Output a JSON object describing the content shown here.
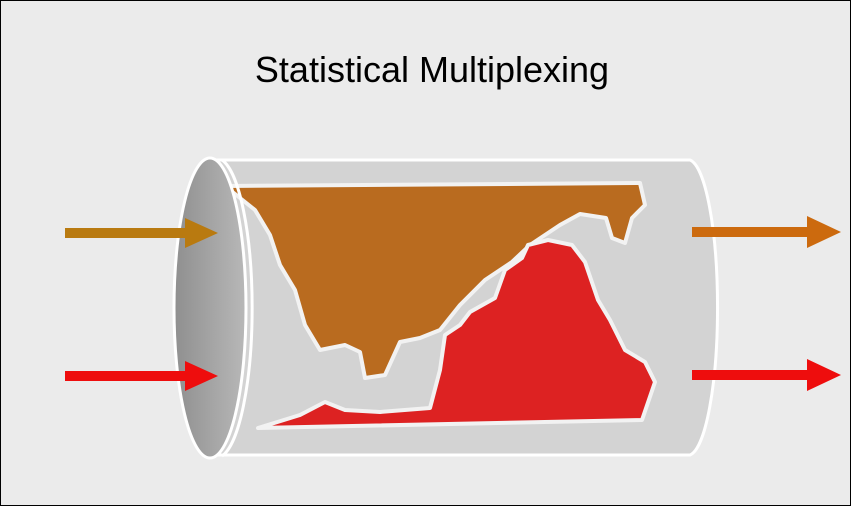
{
  "title": "Statistical Multiplexing"
}
